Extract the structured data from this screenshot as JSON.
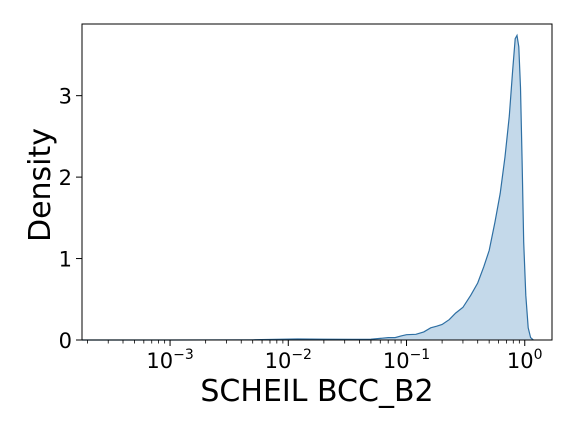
{
  "chart_data": {
    "type": "area",
    "xlabel": "SCHEIL BCC_B2",
    "ylabel": "Density",
    "x_scale": "log",
    "xlim": [
      0.00018,
      1.7
    ],
    "ylim": [
      0,
      3.88
    ],
    "x_ticks": [
      {
        "value": 0.001,
        "base": "10",
        "exp": "−3"
      },
      {
        "value": 0.01,
        "base": "10",
        "exp": "−2"
      },
      {
        "value": 0.1,
        "base": "10",
        "exp": "−1"
      },
      {
        "value": 1,
        "base": "10",
        "exp": "0"
      }
    ],
    "y_ticks": [
      {
        "value": 0,
        "label": "0"
      },
      {
        "value": 1,
        "label": "1"
      },
      {
        "value": 2,
        "label": "2"
      },
      {
        "value": 3,
        "label": "3"
      }
    ],
    "grid": false,
    "fill_color": "#c4d9ea",
    "line_color": "#2e6fa3",
    "series": [
      {
        "points": [
          [
            0.00018,
            0.0
          ],
          [
            0.001,
            0.0
          ],
          [
            0.005,
            0.003
          ],
          [
            0.012,
            0.012
          ],
          [
            0.02,
            0.01
          ],
          [
            0.035,
            0.008
          ],
          [
            0.05,
            0.01
          ],
          [
            0.06,
            0.02
          ],
          [
            0.07,
            0.03
          ],
          [
            0.08,
            0.03
          ],
          [
            0.09,
            0.05
          ],
          [
            0.1,
            0.065
          ],
          [
            0.12,
            0.07
          ],
          [
            0.14,
            0.1
          ],
          [
            0.16,
            0.15
          ],
          [
            0.18,
            0.17
          ],
          [
            0.2,
            0.19
          ],
          [
            0.23,
            0.25
          ],
          [
            0.26,
            0.33
          ],
          [
            0.3,
            0.4
          ],
          [
            0.35,
            0.55
          ],
          [
            0.4,
            0.7
          ],
          [
            0.45,
            0.9
          ],
          [
            0.5,
            1.1
          ],
          [
            0.56,
            1.45
          ],
          [
            0.62,
            1.8
          ],
          [
            0.68,
            2.25
          ],
          [
            0.74,
            2.75
          ],
          [
            0.79,
            3.3
          ],
          [
            0.83,
            3.7
          ],
          [
            0.86,
            3.74
          ],
          [
            0.89,
            3.6
          ],
          [
            0.92,
            3.1
          ],
          [
            0.95,
            2.2
          ],
          [
            0.98,
            1.2
          ],
          [
            1.02,
            0.55
          ],
          [
            1.07,
            0.15
          ],
          [
            1.12,
            0.03
          ],
          [
            1.18,
            0.0
          ]
        ]
      }
    ]
  }
}
